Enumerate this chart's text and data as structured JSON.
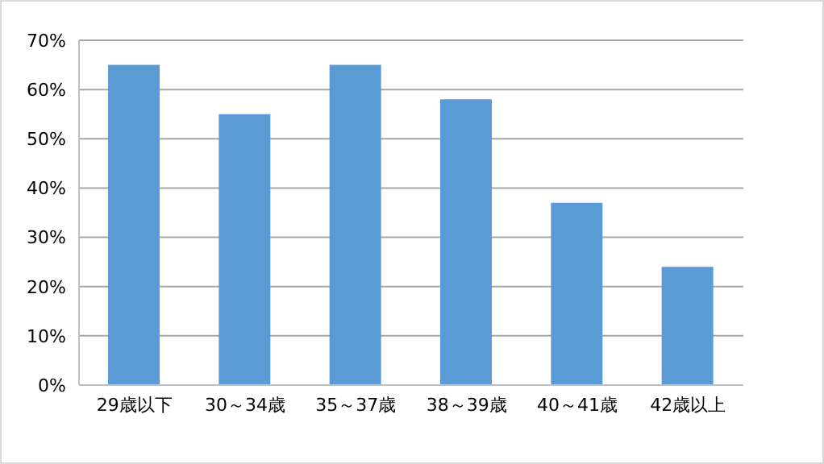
{
  "chart_data": {
    "type": "bar",
    "categories": [
      "29歳以下",
      "30～34歳",
      "35～37歳",
      "38～39歳",
      "40～41歳",
      "42歳以上"
    ],
    "values": [
      65,
      55,
      65,
      58,
      37,
      24
    ],
    "color": "#5b9bd5",
    "ylim": [
      0,
      70
    ],
    "yticks": [
      {
        "value": 0,
        "label": "0%"
      },
      {
        "value": 10,
        "label": "10%"
      },
      {
        "value": 20,
        "label": "20%"
      },
      {
        "value": 30,
        "label": "30%"
      },
      {
        "value": 40,
        "label": "40%"
      },
      {
        "value": 50,
        "label": "50%"
      },
      {
        "value": 60,
        "label": "60%"
      },
      {
        "value": 70,
        "label": "70%"
      }
    ],
    "grid": "y"
  }
}
